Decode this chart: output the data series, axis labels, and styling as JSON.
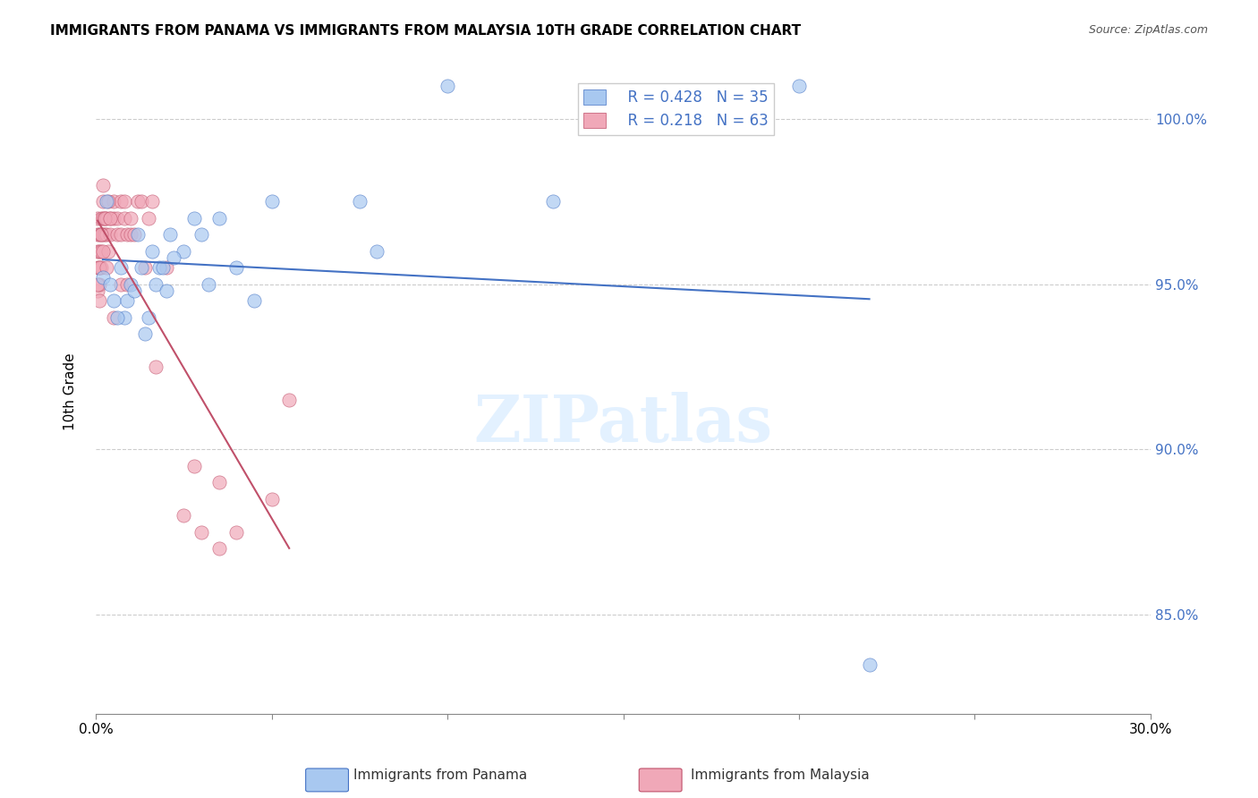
{
  "title": "IMMIGRANTS FROM PANAMA VS IMMIGRANTS FROM MALAYSIA 10TH GRADE CORRELATION CHART",
  "source": "Source: ZipAtlas.com",
  "xlabel": "",
  "ylabel": "10th Grade",
  "watermark": "ZIPatlas",
  "xlim": [
    0.0,
    30.0
  ],
  "ylim": [
    82.0,
    101.5
  ],
  "x_ticks": [
    0.0,
    5.0,
    10.0,
    15.0,
    20.0,
    25.0,
    30.0
  ],
  "x_tick_labels": [
    "0.0%",
    "",
    "",
    "",
    "",
    "",
    "30.0%"
  ],
  "y_ticks": [
    85.0,
    90.0,
    95.0,
    100.0
  ],
  "y_tick_labels": [
    "85.0%",
    "90.0%",
    "95.0%",
    "100.0%"
  ],
  "panama_color": "#a8c8f0",
  "malaysia_color": "#f0a8b8",
  "trend_panama_color": "#4472c4",
  "trend_malaysia_color": "#c0506a",
  "legend_r_panama": "R = 0.428",
  "legend_n_panama": "N = 35",
  "legend_r_malaysia": "R = 0.218",
  "legend_n_malaysia": "N = 63",
  "panama_x": [
    0.3,
    0.5,
    0.8,
    0.9,
    1.0,
    1.1,
    1.2,
    1.3,
    1.4,
    1.5,
    1.6,
    1.7,
    1.8,
    2.0,
    2.1,
    2.5,
    3.0,
    3.5,
    4.5,
    5.0,
    7.5,
    8.0,
    10.0,
    13.0,
    20.0,
    22.0,
    0.2,
    0.4,
    0.6,
    0.7,
    1.9,
    2.2,
    2.8,
    3.2,
    4.0
  ],
  "panama_y": [
    97.5,
    94.5,
    94.0,
    94.5,
    95.0,
    94.8,
    96.5,
    95.5,
    93.5,
    94.0,
    96.0,
    95.0,
    95.5,
    94.8,
    96.5,
    96.0,
    96.5,
    97.0,
    94.5,
    97.5,
    97.5,
    96.0,
    101.0,
    97.5,
    101.0,
    83.5,
    95.2,
    95.0,
    94.0,
    95.5,
    95.5,
    95.8,
    97.0,
    95.0,
    95.5
  ],
  "malaysia_x": [
    0.05,
    0.05,
    0.05,
    0.05,
    0.05,
    0.1,
    0.1,
    0.1,
    0.1,
    0.1,
    0.15,
    0.15,
    0.15,
    0.15,
    0.2,
    0.2,
    0.2,
    0.2,
    0.25,
    0.25,
    0.3,
    0.3,
    0.35,
    0.4,
    0.4,
    0.5,
    0.5,
    0.6,
    0.6,
    0.7,
    0.7,
    0.8,
    0.8,
    0.9,
    1.0,
    1.0,
    1.2,
    1.3,
    1.5,
    1.6,
    1.7,
    2.0,
    2.5,
    2.8,
    3.0,
    3.5,
    3.5,
    4.0,
    5.0,
    5.5,
    0.05,
    0.1,
    0.15,
    0.2,
    0.25,
    0.3,
    0.35,
    0.4,
    0.5,
    0.7,
    0.9,
    1.1,
    1.4
  ],
  "malaysia_y": [
    97.0,
    96.5,
    96.0,
    95.5,
    94.8,
    96.5,
    96.0,
    95.5,
    95.0,
    94.5,
    97.0,
    96.5,
    96.0,
    95.5,
    98.0,
    97.5,
    97.0,
    96.5,
    97.0,
    96.5,
    97.0,
    96.5,
    96.0,
    97.0,
    96.5,
    97.5,
    97.0,
    97.0,
    96.5,
    97.5,
    96.5,
    97.5,
    97.0,
    96.5,
    97.0,
    96.5,
    97.5,
    97.5,
    97.0,
    97.5,
    92.5,
    95.5,
    88.0,
    89.5,
    87.5,
    89.0,
    87.0,
    87.5,
    88.5,
    91.5,
    95.0,
    95.5,
    96.5,
    96.0,
    97.0,
    95.5,
    97.5,
    97.0,
    94.0,
    95.0,
    95.0,
    96.5,
    95.5
  ]
}
